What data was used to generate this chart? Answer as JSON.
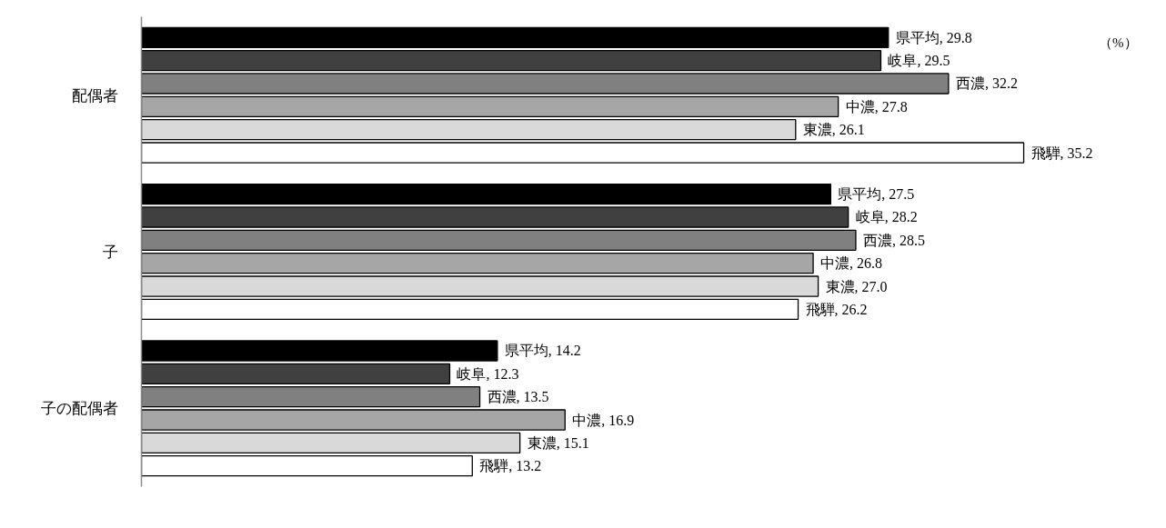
{
  "chart_data": {
    "type": "bar",
    "orientation": "horizontal",
    "categories": [
      "配偶者",
      "子",
      "子の配偶者"
    ],
    "series": [
      {
        "color": "#000000",
        "values": [
          29.8,
          27.5,
          14.2
        ],
        "value_labels": [
          "県平均, 29.8",
          "県平均, 27.5",
          "県平均, 14.2"
        ]
      },
      {
        "color": "#404040",
        "values": [
          29.5,
          28.2,
          12.3
        ],
        "value_labels": [
          "岐阜, 29.5",
          "岐阜, 28.2",
          "岐阜, 12.3"
        ]
      },
      {
        "color": "#808080",
        "values": [
          32.2,
          28.5,
          13.5
        ],
        "value_labels": [
          "西濃, 32.2",
          "西濃, 28.5",
          "西濃, 13.5"
        ]
      },
      {
        "color": "#a6a6a6",
        "values": [
          27.8,
          26.8,
          16.9
        ],
        "value_labels": [
          "中濃, 27.8",
          "中濃, 26.8",
          "中濃, 16.9"
        ]
      },
      {
        "color": "#d9d9d9",
        "values": [
          26.1,
          27.0,
          15.1
        ],
        "value_labels": [
          "東濃, 26.1",
          "東濃, 27.0",
          "東濃, 15.1"
        ]
      },
      {
        "color": "#ffffff",
        "values": [
          35.2,
          26.2,
          13.2
        ],
        "value_labels": [
          "飛騨, 35.2",
          "飛騨, 26.2",
          "飛騨, 13.2"
        ]
      }
    ],
    "grid": false,
    "annotations": [
      "（%）"
    ]
  }
}
